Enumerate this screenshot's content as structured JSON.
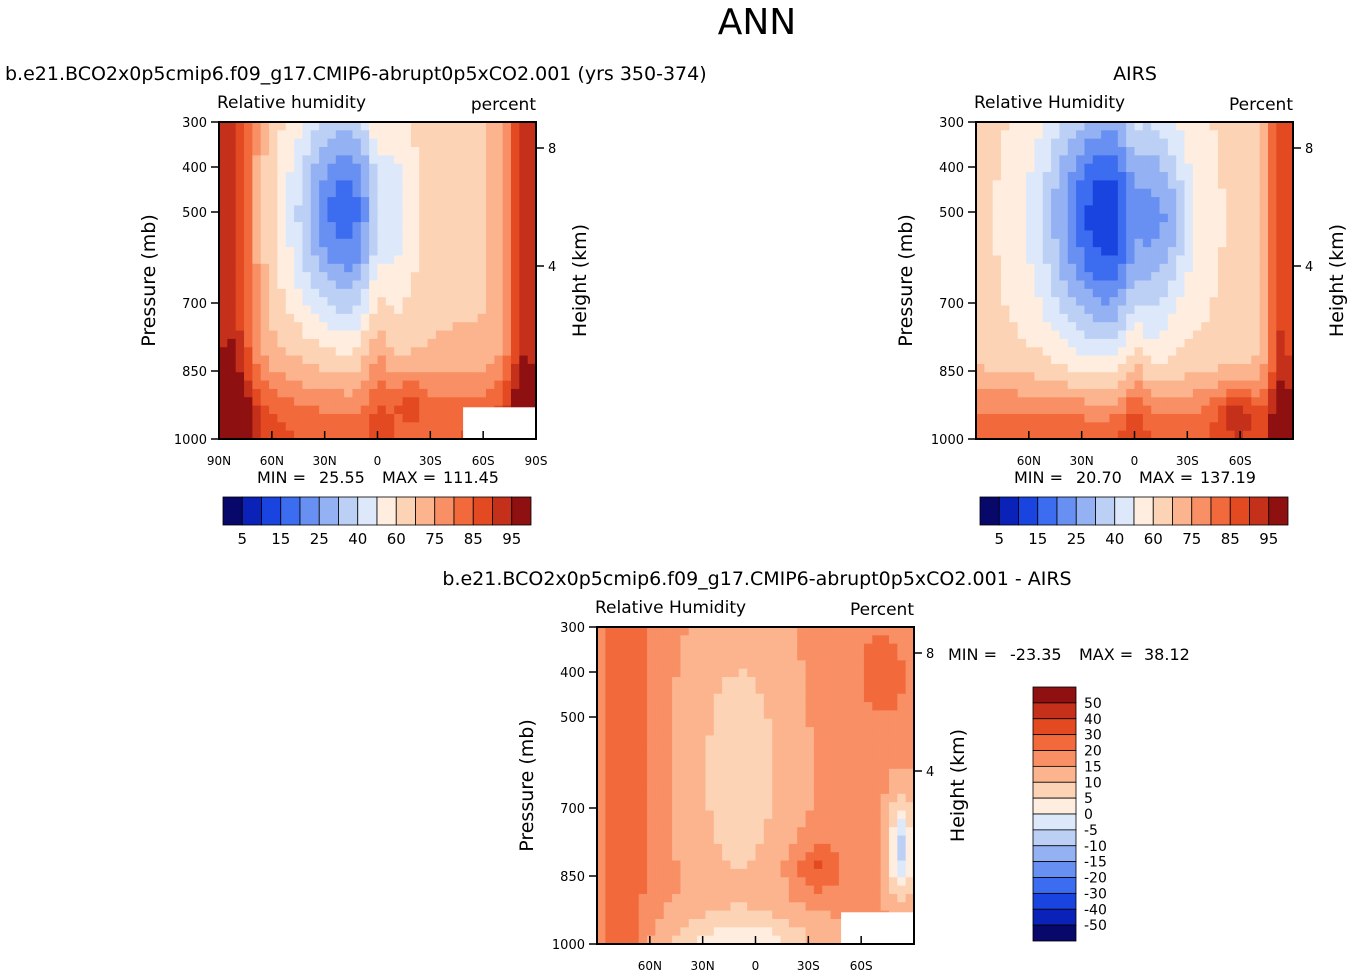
{
  "title": "ANN",
  "chart_data": [
    {
      "type": "heatmap",
      "title": "b.e21.BCO2x0p5cmip6.f09_g17.CMIP6-abrupt0p5xCO2.001  (yrs 350-374)",
      "left_label": "Relative  humidity",
      "right_label": "percent",
      "ylabel": "Pressure  (mb)",
      "y2label": "Height  (km)",
      "y_ticks": [
        "300",
        "400",
        "500",
        "700",
        "850",
        "1000"
      ],
      "y2_ticks": [
        "8",
        "4"
      ],
      "x_ticks": [
        "90N",
        "60N",
        "30N",
        "0",
        "30S",
        "60S",
        "90S"
      ],
      "min_label": "MIN =",
      "min": "25.55",
      "max_label": "MAX =",
      "max": "111.45",
      "colorbar_labels": [
        "5",
        "15",
        "25",
        "40",
        "60",
        "75",
        "85",
        "95"
      ]
    },
    {
      "type": "heatmap",
      "title": "AIRS",
      "left_label": "Relative  Humidity",
      "right_label": "Percent",
      "ylabel": "Pressure  (mb)",
      "y2label": "Height  (km)",
      "y_ticks": [
        "300",
        "400",
        "500",
        "700",
        "850",
        "1000"
      ],
      "y2_ticks": [
        "8",
        "4"
      ],
      "x_ticks": [
        "60N",
        "30N",
        "0",
        "30S",
        "60S"
      ],
      "min_label": "MIN =",
      "min": "20.70",
      "max_label": "MAX =",
      "max": "137.19",
      "colorbar_labels": [
        "5",
        "15",
        "25",
        "40",
        "60",
        "75",
        "85",
        "95"
      ]
    },
    {
      "type": "heatmap",
      "title": "b.e21.BCO2x0p5cmip6.f09_g17.CMIP6-abrupt0p5xCO2.001  -  AIRS",
      "left_label": "Relative  Humidity",
      "right_label": "Percent",
      "ylabel": "Pressure  (mb)",
      "y2label": "Height  (km)",
      "y_ticks": [
        "300",
        "400",
        "500",
        "700",
        "850",
        "1000"
      ],
      "y2_ticks": [
        "8",
        "4"
      ],
      "x_ticks": [
        "60N",
        "30N",
        "0",
        "30S",
        "60S"
      ],
      "min_label": "MIN =",
      "min": "-23.35",
      "max_label": "MAX =",
      "max": "38.12",
      "colorbar_labels": [
        "50",
        "40",
        "30",
        "20",
        "15",
        "10",
        "5",
        "0",
        "-5",
        "-10",
        "-15",
        "-20",
        "-30",
        "-40",
        "-50"
      ]
    }
  ],
  "colors": {
    "seq_palette": [
      "#08086b",
      "#0b22b8",
      "#1a44e0",
      "#3c6cf0",
      "#6890f2",
      "#93b1f3",
      "#bcd0f6",
      "#dde9fa",
      "#ffeee0",
      "#fdd3b6",
      "#fcb48e",
      "#f98f64",
      "#f26a3c",
      "#e34a22",
      "#c5301a",
      "#8e1010"
    ],
    "diff_palette": [
      "#08086b",
      "#0b22b8",
      "#1a44e0",
      "#3c6cf0",
      "#6890f2",
      "#93b1f3",
      "#bcd0f6",
      "#dde9fa",
      "#ffeee0",
      "#fdd3b6",
      "#fcb48e",
      "#f98f64",
      "#f26a3c",
      "#e34a22",
      "#c5301a",
      "#8e1010"
    ]
  }
}
